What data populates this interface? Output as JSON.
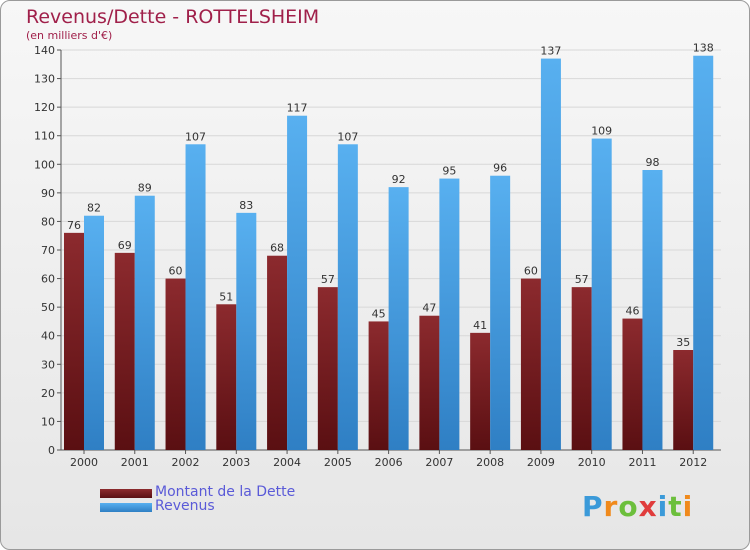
{
  "title": "Revenus/Dette - ROTTELSHEIM",
  "subtitle": "(en milliers d'€)",
  "logo": {
    "letters": [
      "P",
      "r",
      "o",
      "x",
      "i",
      "t",
      "i"
    ],
    "colors": [
      "#3b9ad9",
      "#f08a1c",
      "#6cbf3c",
      "#e03c3c",
      "#3b9ad9",
      "#6cbf3c",
      "#f08a1c"
    ]
  },
  "colors": {
    "dette": "#7a1c1f",
    "revenus": "#4aa3e8",
    "grid": "#d8d8d8",
    "text": "#333333"
  },
  "chart_data": {
    "type": "bar",
    "categories": [
      "2000",
      "2001",
      "2002",
      "2003",
      "2004",
      "2005",
      "2006",
      "2007",
      "2008",
      "2009",
      "2010",
      "2011",
      "2012"
    ],
    "series": [
      {
        "name": "Montant de la Dette",
        "values": [
          76,
          69,
          60,
          51,
          68,
          57,
          45,
          47,
          41,
          60,
          57,
          46,
          35
        ]
      },
      {
        "name": "Revenus",
        "values": [
          82,
          89,
          107,
          83,
          117,
          107,
          92,
          95,
          96,
          137,
          109,
          98,
          138
        ]
      }
    ],
    "ylim": [
      0,
      140
    ],
    "ytick_step": 10,
    "grid": true,
    "legend": "bottom-left"
  }
}
